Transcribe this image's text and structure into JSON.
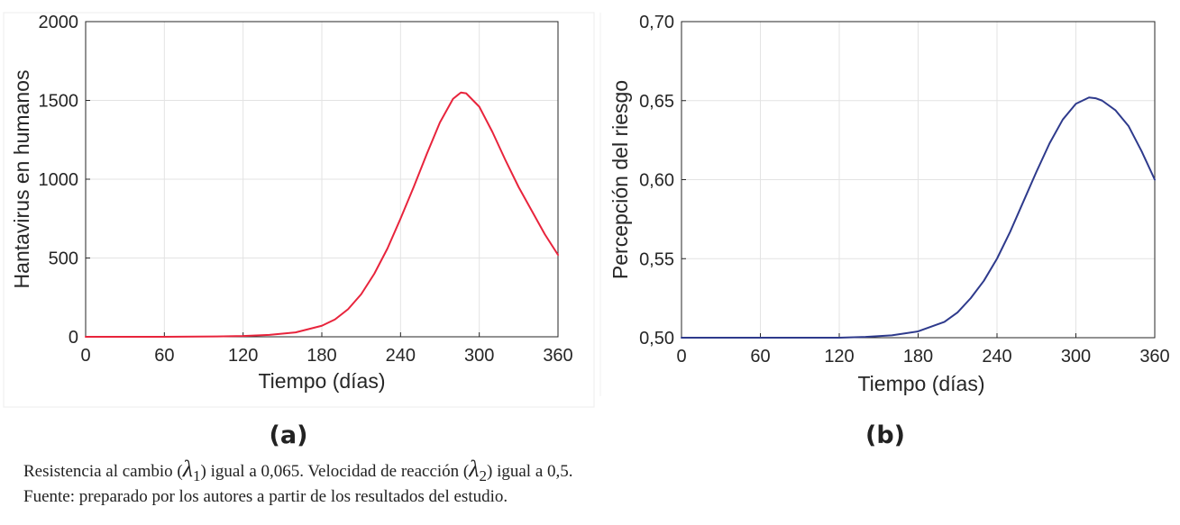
{
  "chart_data": [
    {
      "type": "line",
      "panel_label": "(a)",
      "xlabel": "Tiempo (días)",
      "ylabel": "Hantavirus en humanos",
      "xlim": [
        0,
        360
      ],
      "ylim": [
        0,
        2000
      ],
      "xticks": [
        "0",
        "60",
        "120",
        "180",
        "240",
        "300",
        "360"
      ],
      "yticks": [
        "0",
        "500",
        "1000",
        "1500",
        "2000"
      ],
      "grid": true,
      "series": [
        {
          "color": "#e8243c",
          "x": [
            0,
            60,
            100,
            120,
            140,
            160,
            180,
            190,
            200,
            210,
            220,
            230,
            240,
            250,
            260,
            270,
            280,
            286,
            290,
            300,
            310,
            320,
            330,
            340,
            350,
            360
          ],
          "y": [
            0,
            0,
            2,
            5,
            12,
            28,
            70,
            110,
            175,
            270,
            400,
            560,
            750,
            950,
            1160,
            1360,
            1510,
            1550,
            1545,
            1460,
            1300,
            1120,
            950,
            800,
            650,
            520
          ]
        }
      ]
    },
    {
      "type": "line",
      "panel_label": "(b)",
      "xlabel": "Tiempo (días)",
      "ylabel": "Percepción del riesgo",
      "xlim": [
        0,
        360
      ],
      "ylim": [
        0.5,
        0.7
      ],
      "xticks": [
        "0",
        "60",
        "120",
        "180",
        "240",
        "300",
        "360"
      ],
      "yticks": [
        "0,50",
        "0,55",
        "0,60",
        "0,65",
        "0,70"
      ],
      "grid": true,
      "series": [
        {
          "color": "#2e3a8c",
          "x": [
            0,
            60,
            120,
            140,
            160,
            180,
            200,
            210,
            220,
            230,
            240,
            250,
            260,
            270,
            280,
            290,
            300,
            310,
            315,
            320,
            330,
            340,
            350,
            360
          ],
          "y": [
            0.5,
            0.5,
            0.5,
            0.5005,
            0.5015,
            0.504,
            0.51,
            0.516,
            0.525,
            0.536,
            0.55,
            0.567,
            0.586,
            0.605,
            0.623,
            0.638,
            0.648,
            0.652,
            0.6515,
            0.65,
            0.644,
            0.634,
            0.618,
            0.6
          ]
        }
      ]
    }
  ],
  "caption": {
    "line1_a": "Resistencia al cambio (",
    "lambda1": "λ",
    "sub1": "1",
    "line1_b": ") igual a 0,065. Velocidad de reacción (",
    "lambda2": "λ",
    "sub2": "2",
    "line1_c": ") igual a 0,5.",
    "line2": "Fuente: preparado por los autores a partir de los resultados del estudio."
  }
}
